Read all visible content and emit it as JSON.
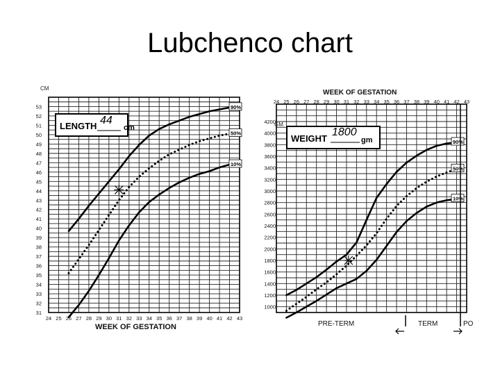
{
  "slide": {
    "title": "Lubchenco chart"
  },
  "chart_data": [
    {
      "type": "line",
      "xlabel": "WEEK OF GESTATION",
      "ylabel": "CM",
      "x_ticks": [
        "24",
        "25",
        "26",
        "27",
        "28",
        "29",
        "30",
        "31",
        "32",
        "33",
        "34",
        "35",
        "36",
        "37",
        "38",
        "39",
        "40",
        "41",
        "42",
        "43"
      ],
      "y_ticks": [
        "31",
        "32",
        "33",
        "34",
        "35",
        "36",
        "37",
        "38",
        "39",
        "40",
        "41",
        "42",
        "43",
        "44",
        "45",
        "46",
        "47",
        "48",
        "49",
        "50",
        "51",
        "52",
        "53"
      ],
      "xlim": [
        24,
        43
      ],
      "ylim": [
        31,
        54
      ],
      "grid": true,
      "label_box": {
        "prefix": "LENGTH",
        "handwritten_value": "44",
        "unit": "cm"
      },
      "series": [
        {
          "name": "90%",
          "style": "solid",
          "x": [
            26,
            27,
            28,
            29,
            30,
            31,
            32,
            33,
            34,
            35,
            36,
            37,
            38,
            39,
            40,
            41,
            42
          ],
          "y": [
            39.7,
            41.0,
            42.4,
            43.7,
            45.0,
            46.3,
            47.7,
            48.9,
            49.9,
            50.6,
            51.1,
            51.5,
            51.9,
            52.2,
            52.5,
            52.7,
            52.9
          ]
        },
        {
          "name": "50%",
          "style": "dotted",
          "x": [
            26,
            27,
            28,
            29,
            30,
            31,
            32,
            33,
            34,
            35,
            36,
            37,
            38,
            39,
            40,
            41,
            42
          ],
          "y": [
            35.2,
            36.7,
            38.2,
            39.8,
            41.4,
            43.0,
            44.4,
            45.5,
            46.4,
            47.2,
            47.9,
            48.4,
            48.9,
            49.3,
            49.6,
            49.9,
            50.1
          ]
        },
        {
          "name": "10%",
          "style": "solid",
          "x": [
            26,
            27,
            28,
            29,
            30,
            31,
            32,
            33,
            34,
            35,
            36,
            37,
            38,
            39,
            40,
            41,
            42
          ],
          "y": [
            30.5,
            31.8,
            33.3,
            35.0,
            36.8,
            38.7,
            40.3,
            41.7,
            42.8,
            43.6,
            44.3,
            44.9,
            45.4,
            45.8,
            46.1,
            46.5,
            46.8
          ]
        }
      ],
      "marker": {
        "label": "44 cm",
        "x": 31,
        "y": 44.1
      }
    },
    {
      "type": "line",
      "title": "WEEK OF GESTATION",
      "xlabel": "WEEK OF GESTATION",
      "ylabel": "GM.",
      "x_ticks": [
        "24",
        "25",
        "26",
        "27",
        "28",
        "29",
        "30",
        "31",
        "32",
        "33",
        "34",
        "35",
        "36",
        "37",
        "38",
        "39",
        "40",
        "41",
        "42",
        "43"
      ],
      "y_ticks": [
        "1000",
        "1200",
        "1400",
        "1600",
        "1800",
        "2000",
        "2200",
        "2400",
        "2600",
        "2800",
        "3000",
        "3200",
        "3400",
        "3600",
        "3800",
        "4000",
        "4200"
      ],
      "xlim": [
        24,
        43
      ],
      "ylim": [
        900,
        4500
      ],
      "grid": true,
      "label_box": {
        "prefix": "WEIGHT",
        "handwritten_value": "1800",
        "unit": "gm"
      },
      "series": [
        {
          "name": "90%",
          "style": "solid",
          "x": [
            25,
            26,
            27,
            28,
            29,
            30,
            31,
            32,
            33,
            34,
            35,
            36,
            37,
            38,
            39,
            40,
            41,
            42
          ],
          "y": [
            1200,
            1290,
            1400,
            1510,
            1640,
            1780,
            1900,
            2110,
            2500,
            2880,
            3120,
            3330,
            3490,
            3610,
            3710,
            3780,
            3820,
            3840
          ]
        },
        {
          "name": "50%",
          "style": "dotted",
          "x": [
            25,
            26,
            27,
            28,
            29,
            30,
            31,
            32,
            33,
            34,
            35,
            36,
            37,
            38,
            39,
            40,
            41,
            42
          ],
          "y": [
            930,
            1050,
            1170,
            1300,
            1420,
            1560,
            1710,
            1880,
            2060,
            2270,
            2520,
            2740,
            2910,
            3050,
            3160,
            3250,
            3320,
            3380
          ]
        },
        {
          "name": "10%",
          "style": "solid",
          "x": [
            25,
            26,
            27,
            28,
            29,
            30,
            31,
            32,
            33,
            34,
            35,
            36,
            37,
            38,
            39,
            40,
            41,
            42
          ],
          "y": [
            810,
            900,
            1000,
            1100,
            1210,
            1320,
            1400,
            1480,
            1620,
            1810,
            2050,
            2290,
            2480,
            2620,
            2730,
            2800,
            2840,
            2860
          ]
        }
      ],
      "marker": {
        "label": "1800 gm",
        "x": 31.2,
        "y": 1800
      },
      "zones": {
        "left": "PRE-TERM",
        "middle": "TERM",
        "right": "PO"
      }
    }
  ]
}
